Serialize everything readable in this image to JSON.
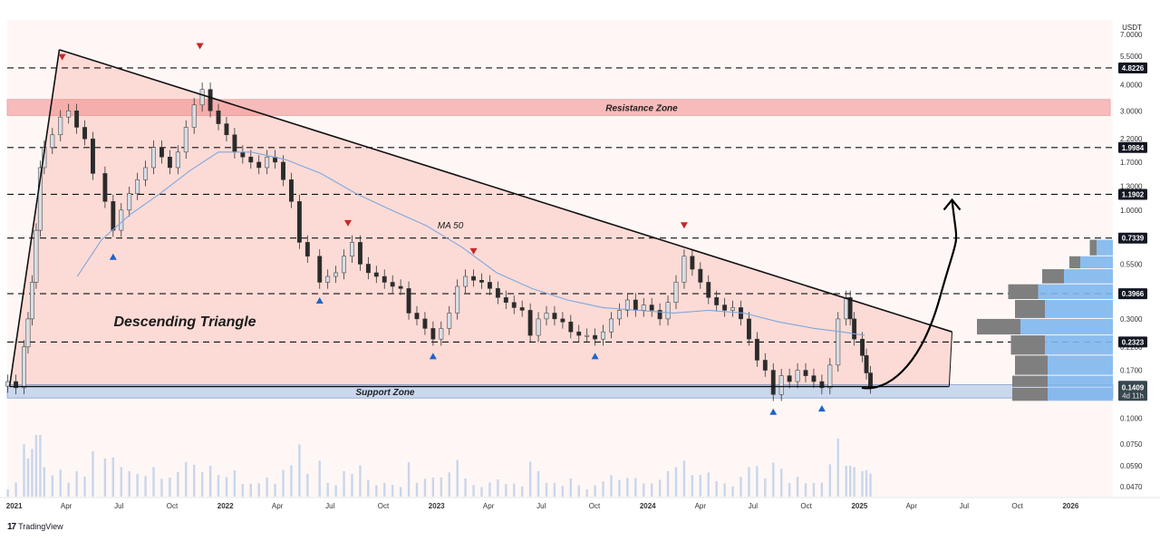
{
  "chart_data": {
    "type": "candlestick",
    "title": "",
    "currency": "USDT",
    "y_scale": "log",
    "ylim": [
      0.042,
      8.2
    ],
    "x_range": [
      "2020-12-20",
      "2026-03-15"
    ],
    "y_tick_labels": [
      "7.0000",
      "5.5000",
      "4.0000",
      "3.0000",
      "2.2000",
      "1.7000",
      "1.3000",
      "1.0000",
      "0.7500",
      "0.5500",
      "0.3000",
      "0.2200",
      "0.1700",
      "0.1000",
      "0.0750",
      "0.0590",
      "0.0470"
    ],
    "y_tick_values": [
      7.0,
      5.5,
      4.0,
      3.0,
      2.2,
      1.7,
      1.3,
      1.0,
      0.75,
      0.55,
      0.3,
      0.22,
      0.17,
      0.1,
      0.075,
      0.059,
      0.047
    ],
    "x_tick_labels": [
      "2021",
      "Apr",
      "Jul",
      "Oct",
      "2022",
      "Apr",
      "Jul",
      "Oct",
      "2023",
      "Apr",
      "Jul",
      "Oct",
      "2024",
      "Apr",
      "Jul",
      "Oct",
      "2025",
      "Apr",
      "Jul",
      "Oct",
      "2026"
    ],
    "x_tick_dates": [
      "2021-01-01",
      "2021-04-01",
      "2021-07-01",
      "2021-10-01",
      "2022-01-01",
      "2022-04-01",
      "2022-07-01",
      "2022-10-01",
      "2023-01-01",
      "2023-04-01",
      "2023-07-01",
      "2023-10-01",
      "2024-01-01",
      "2024-04-01",
      "2024-07-01",
      "2024-10-01",
      "2025-01-01",
      "2025-04-01",
      "2025-07-01",
      "2025-10-01",
      "2026-01-01"
    ],
    "horizontal_levels": [
      {
        "value": 4.8226,
        "label": "4.8226"
      },
      {
        "value": 1.9984,
        "label": "1.9984"
      },
      {
        "value": 1.1902,
        "label": "1.1902"
      },
      {
        "value": 0.7339,
        "label": "0.7339"
      },
      {
        "value": 0.3966,
        "label": "0.3966"
      },
      {
        "value": 0.2323,
        "label": "0.2323"
      }
    ],
    "current_price": {
      "value": 0.1409,
      "label": "0.1409",
      "countdown": "4d 11h"
    },
    "zones": [
      {
        "name": "Resistance Zone",
        "from": 2.85,
        "to": 3.4,
        "color": "#f28b8b"
      },
      {
        "name": "Support Zone",
        "from": 0.125,
        "to": 0.145,
        "color": "#a9c4ea"
      }
    ],
    "annotations": {
      "pattern_label": "Descending Triangle",
      "ma_label": "MA 50"
    },
    "triangle": {
      "upper_line": [
        {
          "date": "2021-03-20",
          "price": 5.9
        },
        {
          "date": "2025-06-10",
          "price": 0.26
        }
      ],
      "lower_line": [
        {
          "date": "2020-12-24",
          "price": 0.142
        },
        {
          "date": "2025-06-05",
          "price": 0.142
        }
      ],
      "impulse_line": [
        {
          "date": "2020-12-24",
          "price": 0.142
        },
        {
          "date": "2021-03-20",
          "price": 5.9
        }
      ]
    },
    "projection": [
      {
        "date": "2025-01-05",
        "price": 0.14
      },
      {
        "date": "2025-02-15",
        "price": 0.134
      },
      {
        "date": "2025-04-15",
        "price": 0.17
      },
      {
        "date": "2025-05-20",
        "price": 0.38
      },
      {
        "date": "2025-06-10",
        "price": 1.12
      }
    ],
    "close_series": [
      {
        "date": "2020-12-21",
        "close": 0.15
      },
      {
        "date": "2021-01-04",
        "close": 0.14
      },
      {
        "date": "2021-01-18",
        "close": 0.22
      },
      {
        "date": "2021-01-25",
        "close": 0.3
      },
      {
        "date": "2021-02-01",
        "close": 0.45
      },
      {
        "date": "2021-02-08",
        "close": 0.8
      },
      {
        "date": "2021-02-15",
        "close": 1.6
      },
      {
        "date": "2021-02-22",
        "close": 2.0
      },
      {
        "date": "2021-03-08",
        "close": 2.3
      },
      {
        "date": "2021-03-22",
        "close": 2.8
      },
      {
        "date": "2021-04-05",
        "close": 3.0
      },
      {
        "date": "2021-04-19",
        "close": 2.5
      },
      {
        "date": "2021-05-03",
        "close": 2.2
      },
      {
        "date": "2021-05-17",
        "close": 1.5
      },
      {
        "date": "2021-06-07",
        "close": 1.1
      },
      {
        "date": "2021-06-21",
        "close": 0.8
      },
      {
        "date": "2021-07-05",
        "close": 1.0
      },
      {
        "date": "2021-07-19",
        "close": 1.2
      },
      {
        "date": "2021-08-02",
        "close": 1.4
      },
      {
        "date": "2021-08-16",
        "close": 1.6
      },
      {
        "date": "2021-08-30",
        "close": 2.0
      },
      {
        "date": "2021-09-13",
        "close": 1.8
      },
      {
        "date": "2021-09-27",
        "close": 1.6
      },
      {
        "date": "2021-10-11",
        "close": 1.9
      },
      {
        "date": "2021-10-25",
        "close": 2.5
      },
      {
        "date": "2021-11-08",
        "close": 3.2
      },
      {
        "date": "2021-11-22",
        "close": 3.8
      },
      {
        "date": "2021-12-06",
        "close": 3.0
      },
      {
        "date": "2021-12-20",
        "close": 2.6
      },
      {
        "date": "2022-01-03",
        "close": 2.3
      },
      {
        "date": "2022-01-17",
        "close": 1.9
      },
      {
        "date": "2022-01-31",
        "close": 1.8
      },
      {
        "date": "2022-02-14",
        "close": 1.7
      },
      {
        "date": "2022-02-28",
        "close": 1.6
      },
      {
        "date": "2022-03-14",
        "close": 1.8
      },
      {
        "date": "2022-03-28",
        "close": 1.7
      },
      {
        "date": "2022-04-11",
        "close": 1.4
      },
      {
        "date": "2022-04-25",
        "close": 1.1
      },
      {
        "date": "2022-05-09",
        "close": 0.7
      },
      {
        "date": "2022-05-23",
        "close": 0.6
      },
      {
        "date": "2022-06-13",
        "close": 0.45
      },
      {
        "date": "2022-06-27",
        "close": 0.48
      },
      {
        "date": "2022-07-11",
        "close": 0.5
      },
      {
        "date": "2022-07-25",
        "close": 0.6
      },
      {
        "date": "2022-08-08",
        "close": 0.7
      },
      {
        "date": "2022-08-22",
        "close": 0.55
      },
      {
        "date": "2022-09-05",
        "close": 0.5
      },
      {
        "date": "2022-09-19",
        "close": 0.48
      },
      {
        "date": "2022-10-03",
        "close": 0.45
      },
      {
        "date": "2022-10-17",
        "close": 0.43
      },
      {
        "date": "2022-10-31",
        "close": 0.42
      },
      {
        "date": "2022-11-14",
        "close": 0.32
      },
      {
        "date": "2022-11-28",
        "close": 0.3
      },
      {
        "date": "2022-12-12",
        "close": 0.27
      },
      {
        "date": "2022-12-26",
        "close": 0.24
      },
      {
        "date": "2023-01-09",
        "close": 0.27
      },
      {
        "date": "2023-01-23",
        "close": 0.32
      },
      {
        "date": "2023-02-06",
        "close": 0.43
      },
      {
        "date": "2023-02-20",
        "close": 0.48
      },
      {
        "date": "2023-03-06",
        "close": 0.46
      },
      {
        "date": "2023-03-20",
        "close": 0.45
      },
      {
        "date": "2023-04-03",
        "close": 0.42
      },
      {
        "date": "2023-04-17",
        "close": 0.38
      },
      {
        "date": "2023-05-01",
        "close": 0.36
      },
      {
        "date": "2023-05-15",
        "close": 0.34
      },
      {
        "date": "2023-05-29",
        "close": 0.33
      },
      {
        "date": "2023-06-12",
        "close": 0.25
      },
      {
        "date": "2023-06-26",
        "close": 0.3
      },
      {
        "date": "2023-07-10",
        "close": 0.32
      },
      {
        "date": "2023-07-24",
        "close": 0.3
      },
      {
        "date": "2023-08-07",
        "close": 0.29
      },
      {
        "date": "2023-08-21",
        "close": 0.26
      },
      {
        "date": "2023-09-04",
        "close": 0.25
      },
      {
        "date": "2023-09-18",
        "close": 0.25
      },
      {
        "date": "2023-10-02",
        "close": 0.24
      },
      {
        "date": "2023-10-16",
        "close": 0.26
      },
      {
        "date": "2023-10-30",
        "close": 0.3
      },
      {
        "date": "2023-11-13",
        "close": 0.33
      },
      {
        "date": "2023-11-27",
        "close": 0.37
      },
      {
        "date": "2023-12-11",
        "close": 0.33
      },
      {
        "date": "2023-12-25",
        "close": 0.35
      },
      {
        "date": "2024-01-08",
        "close": 0.33
      },
      {
        "date": "2024-01-22",
        "close": 0.3
      },
      {
        "date": "2024-02-05",
        "close": 0.36
      },
      {
        "date": "2024-02-19",
        "close": 0.45
      },
      {
        "date": "2024-03-04",
        "close": 0.6
      },
      {
        "date": "2024-03-18",
        "close": 0.52
      },
      {
        "date": "2024-04-01",
        "close": 0.45
      },
      {
        "date": "2024-04-15",
        "close": 0.38
      },
      {
        "date": "2024-04-29",
        "close": 0.35
      },
      {
        "date": "2024-05-13",
        "close": 0.33
      },
      {
        "date": "2024-05-27",
        "close": 0.34
      },
      {
        "date": "2024-06-10",
        "close": 0.3
      },
      {
        "date": "2024-06-24",
        "close": 0.24
      },
      {
        "date": "2024-07-08",
        "close": 0.19
      },
      {
        "date": "2024-07-22",
        "close": 0.17
      },
      {
        "date": "2024-08-05",
        "close": 0.13
      },
      {
        "date": "2024-08-19",
        "close": 0.16
      },
      {
        "date": "2024-09-02",
        "close": 0.15
      },
      {
        "date": "2024-09-16",
        "close": 0.17
      },
      {
        "date": "2024-09-30",
        "close": 0.16
      },
      {
        "date": "2024-10-14",
        "close": 0.15
      },
      {
        "date": "2024-10-28",
        "close": 0.14
      },
      {
        "date": "2024-11-11",
        "close": 0.18
      },
      {
        "date": "2024-11-25",
        "close": 0.3
      },
      {
        "date": "2024-12-09",
        "close": 0.38
      },
      {
        "date": "2024-12-16",
        "close": 0.3
      },
      {
        "date": "2024-12-23",
        "close": 0.24
      },
      {
        "date": "2025-01-06",
        "close": 0.2
      },
      {
        "date": "2025-01-13",
        "close": 0.165
      },
      {
        "date": "2025-01-20",
        "close": 0.141
      }
    ],
    "ma50_series": [
      {
        "date": "2021-04-20",
        "value": 0.48
      },
      {
        "date": "2021-06-01",
        "value": 0.72
      },
      {
        "date": "2021-07-20",
        "value": 0.95
      },
      {
        "date": "2021-09-10",
        "value": 1.2
      },
      {
        "date": "2021-11-01",
        "value": 1.55
      },
      {
        "date": "2021-12-20",
        "value": 1.9
      },
      {
        "date": "2022-02-15",
        "value": 1.9
      },
      {
        "date": "2022-04-15",
        "value": 1.75
      },
      {
        "date": "2022-06-15",
        "value": 1.5
      },
      {
        "date": "2022-08-15",
        "value": 1.2
      },
      {
        "date": "2022-10-15",
        "value": 1.0
      },
      {
        "date": "2022-12-15",
        "value": 0.84
      },
      {
        "date": "2023-02-15",
        "value": 0.66
      },
      {
        "date": "2023-04-15",
        "value": 0.5
      },
      {
        "date": "2023-06-15",
        "value": 0.42
      },
      {
        "date": "2023-08-15",
        "value": 0.37
      },
      {
        "date": "2023-10-15",
        "value": 0.34
      },
      {
        "date": "2023-12-15",
        "value": 0.33
      },
      {
        "date": "2024-02-15",
        "value": 0.32
      },
      {
        "date": "2024-04-15",
        "value": 0.33
      },
      {
        "date": "2024-06-15",
        "value": 0.32
      },
      {
        "date": "2024-08-15",
        "value": 0.29
      },
      {
        "date": "2024-10-15",
        "value": 0.27
      },
      {
        "date": "2024-12-01",
        "value": 0.26
      },
      {
        "date": "2025-01-10",
        "value": 0.25
      }
    ],
    "top_markers": [
      {
        "date": "2021-03-25",
        "price": 5.4
      },
      {
        "date": "2021-11-18",
        "price": 6.1
      },
      {
        "date": "2022-08-01",
        "price": 0.86
      },
      {
        "date": "2023-03-06",
        "price": 0.63
      },
      {
        "date": "2024-03-04",
        "price": 0.84
      }
    ],
    "bottom_markers": [
      {
        "date": "2021-06-21",
        "price": 0.6
      },
      {
        "date": "2022-06-13",
        "price": 0.37
      },
      {
        "date": "2022-12-26",
        "price": 0.2
      },
      {
        "date": "2023-10-02",
        "price": 0.2
      },
      {
        "date": "2024-08-05",
        "price": 0.108
      },
      {
        "date": "2024-10-28",
        "price": 0.112
      }
    ],
    "volume_profile": [
      {
        "price_from": 0.6,
        "price_to": 0.72,
        "buy": 0.12,
        "sell": 0.05
      },
      {
        "price_from": 0.52,
        "price_to": 0.6,
        "buy": 0.24,
        "sell": 0.08
      },
      {
        "price_from": 0.44,
        "price_to": 0.52,
        "buy": 0.36,
        "sell": 0.16
      },
      {
        "price_from": 0.37,
        "price_to": 0.44,
        "buy": 0.55,
        "sell": 0.22
      },
      {
        "price_from": 0.3,
        "price_to": 0.37,
        "buy": 0.5,
        "sell": 0.22
      },
      {
        "price_from": 0.25,
        "price_to": 0.3,
        "buy": 0.68,
        "sell": 0.32
      },
      {
        "price_from": 0.2,
        "price_to": 0.25,
        "buy": 0.5,
        "sell": 0.25
      },
      {
        "price_from": 0.16,
        "price_to": 0.2,
        "buy": 0.48,
        "sell": 0.24
      },
      {
        "price_from": 0.14,
        "price_to": 0.16,
        "buy": 0.48,
        "sell": 0.26
      },
      {
        "price_from": 0.12,
        "price_to": 0.14,
        "buy": 0.48,
        "sell": 0.26
      }
    ]
  },
  "footer": {
    "brand": "TradingView"
  },
  "colors": {
    "triangle_fill": "#fbd6d0",
    "background_tint": "#fdf1ee",
    "resistance_zone": "#f28b8b",
    "support_zone": "#a9c4ea",
    "ma_line": "#7fa7dd",
    "up_candle": "#d8dde4",
    "down_candle": "#2b2b2b",
    "top_marker": "#c62828",
    "bottom_marker": "#1e63c8",
    "volume_bar": "#c9d6ea",
    "profile_blue": "#7fb6ee",
    "profile_gray": "#7f7f7f"
  }
}
